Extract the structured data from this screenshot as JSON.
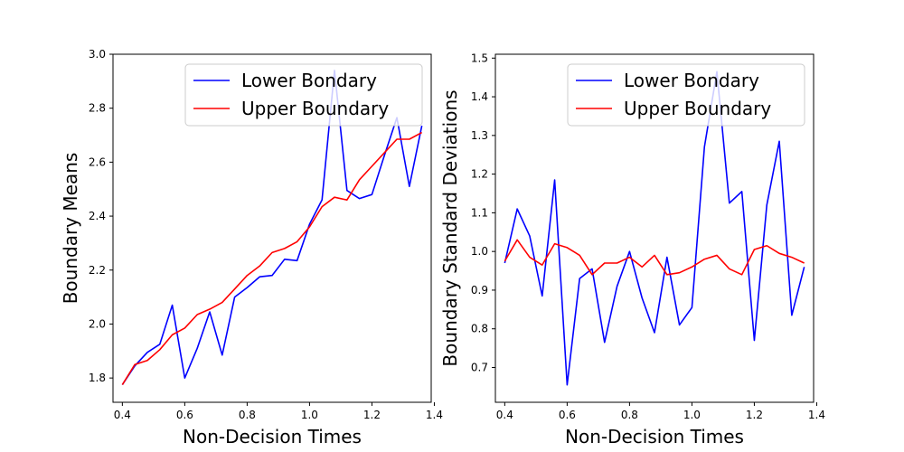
{
  "chart_data": [
    {
      "type": "line",
      "xlabel": "Non-Decision Times",
      "ylabel": "Boundary Means",
      "xlim": [
        0.37,
        1.39
      ],
      "ylim": [
        1.71,
        3.0
      ],
      "xticks": [
        0.4,
        0.6,
        0.8,
        1.0,
        1.2,
        1.4
      ],
      "xtick_labels": [
        "0.4",
        "0.6",
        "0.8",
        "1.0",
        "1.2",
        "1.4"
      ],
      "yticks": [
        1.8,
        2.0,
        2.2,
        2.4,
        2.6,
        2.8,
        3.0
      ],
      "ytick_labels": [
        "1.8",
        "2.0",
        "2.2",
        "2.4",
        "2.6",
        "2.8",
        "3.0"
      ],
      "legend_position": "upper-right",
      "x": [
        0.4,
        0.44,
        0.48,
        0.52,
        0.56,
        0.6,
        0.64,
        0.68,
        0.72,
        0.76,
        0.8,
        0.84,
        0.88,
        0.92,
        0.96,
        1.0,
        1.04,
        1.08,
        1.12,
        1.16,
        1.2,
        1.24,
        1.28,
        1.32,
        1.36
      ],
      "series": [
        {
          "name": "Lower Bondary",
          "color": "#0000ff",
          "values": [
            1.775,
            1.845,
            1.895,
            1.925,
            2.07,
            1.8,
            1.91,
            2.045,
            1.885,
            2.1,
            2.135,
            2.175,
            2.18,
            2.24,
            2.235,
            2.37,
            2.46,
            2.94,
            2.495,
            2.465,
            2.48,
            2.625,
            2.765,
            2.51,
            2.735
          ]
        },
        {
          "name": "Upper Boundary",
          "color": "#ff0000",
          "values": [
            1.775,
            1.85,
            1.865,
            1.905,
            1.96,
            1.985,
            2.035,
            2.055,
            2.08,
            2.13,
            2.18,
            2.215,
            2.265,
            2.28,
            2.305,
            2.36,
            2.435,
            2.47,
            2.46,
            2.535,
            2.585,
            2.635,
            2.685,
            2.685,
            2.71
          ]
        }
      ]
    },
    {
      "type": "line",
      "xlabel": "Non-Decision Times",
      "ylabel": "Boundary Standard Deviations",
      "xlim": [
        0.37,
        1.39
      ],
      "ylim": [
        0.61,
        1.51
      ],
      "xticks": [
        0.4,
        0.6,
        0.8,
        1.0,
        1.2,
        1.4
      ],
      "xtick_labels": [
        "0.4",
        "0.6",
        "0.8",
        "1.0",
        "1.2",
        "1.4"
      ],
      "yticks": [
        0.7,
        0.8,
        0.9,
        1.0,
        1.1,
        1.2,
        1.3,
        1.4,
        1.5
      ],
      "ytick_labels": [
        "0.7",
        "0.8",
        "0.9",
        "1.0",
        "1.1",
        "1.2",
        "1.3",
        "1.4",
        "1.5"
      ],
      "legend_position": "upper-right",
      "x": [
        0.4,
        0.44,
        0.48,
        0.52,
        0.56,
        0.6,
        0.64,
        0.68,
        0.72,
        0.76,
        0.8,
        0.84,
        0.88,
        0.92,
        0.96,
        1.0,
        1.04,
        1.08,
        1.12,
        1.16,
        1.2,
        1.24,
        1.28,
        1.32,
        1.36
      ],
      "series": [
        {
          "name": "Lower Bondary",
          "color": "#0000ff",
          "values": [
            0.97,
            1.11,
            1.04,
            0.885,
            1.185,
            0.655,
            0.93,
            0.955,
            0.765,
            0.91,
            1.0,
            0.88,
            0.79,
            0.985,
            0.81,
            0.855,
            1.27,
            1.465,
            1.125,
            1.155,
            0.77,
            1.12,
            1.285,
            0.835,
            0.96
          ]
        },
        {
          "name": "Upper Boundary",
          "color": "#ff0000",
          "values": [
            0.975,
            1.03,
            0.985,
            0.965,
            1.02,
            1.01,
            0.99,
            0.94,
            0.97,
            0.97,
            0.985,
            0.96,
            0.99,
            0.94,
            0.945,
            0.96,
            0.98,
            0.99,
            0.955,
            0.94,
            1.005,
            1.015,
            0.995,
            0.985,
            0.97
          ]
        }
      ]
    }
  ]
}
